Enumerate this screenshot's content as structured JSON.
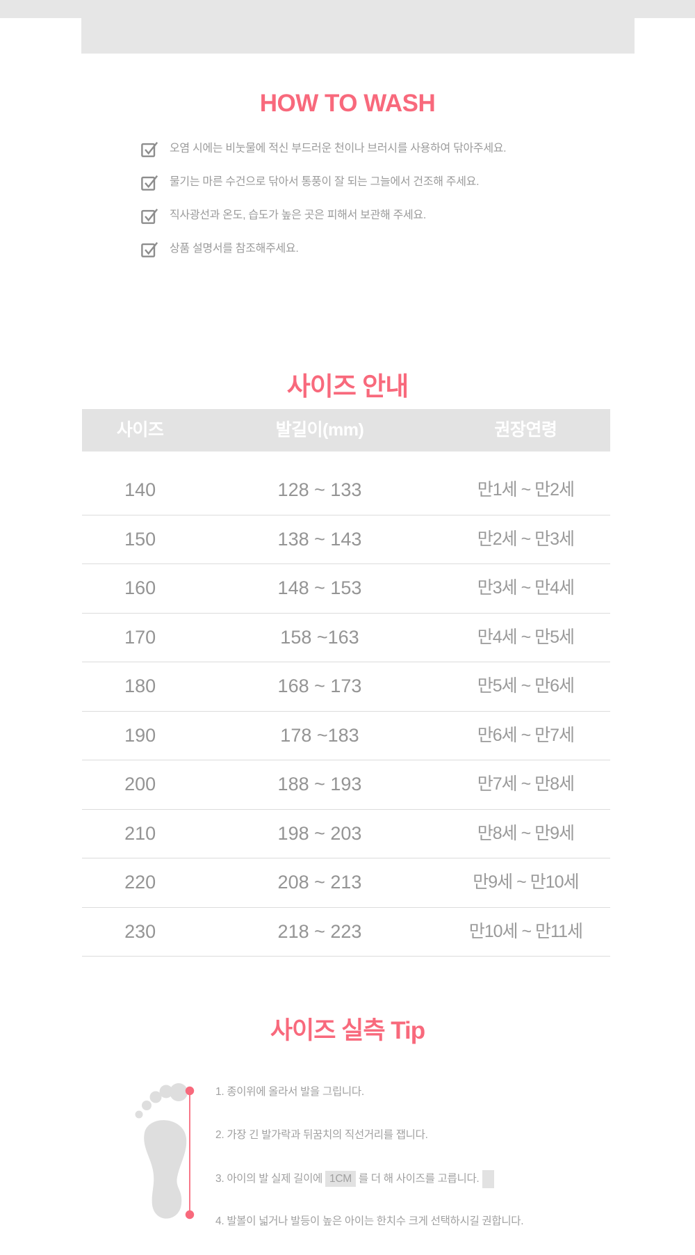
{
  "colors": {
    "accent": "#F8697C",
    "gray_block": "#e6e6e6",
    "table_header_bg": "#e3e3e3",
    "table_header_text": "#ffffff",
    "body_text_gray": "#9b9b9b"
  },
  "wash": {
    "title": "HOW TO WASH",
    "items": [
      "오염 시에는 비눗물에 적신 부드러운 천이나 브러시를 사용하여 닦아주세요.",
      "물기는 마른 수건으로 닦아서 통풍이 잘 되는 그늘에서 건조해 주세요.",
      "직사광선과 온도, 습도가 높은 곳은 피해서 보관해 주세요.",
      "상품 설명서를 참조해주세요."
    ]
  },
  "size_guide": {
    "title": "사이즈 안내",
    "headers": [
      "사이즈",
      "발길이(mm)",
      "권장연령"
    ],
    "rows": [
      [
        "140",
        "128 ~ 133",
        "만1세 ~ 만2세"
      ],
      [
        "150",
        "138 ~ 143",
        "만2세 ~ 만3세"
      ],
      [
        "160",
        "148 ~ 153",
        "만3세 ~ 만4세"
      ],
      [
        "170",
        "158 ~163",
        "만4세 ~ 만5세"
      ],
      [
        "180",
        "168 ~ 173",
        "만5세 ~ 만6세"
      ],
      [
        "190",
        "178 ~183",
        "만6세 ~ 만7세"
      ],
      [
        "200",
        "188 ~ 193",
        "만7세 ~ 만8세"
      ],
      [
        "210",
        "198 ~ 203",
        "만8세 ~ 만9세"
      ],
      [
        "220",
        "208 ~ 213",
        "만9세 ~ 만10세"
      ],
      [
        "230",
        "218 ~ 223",
        "만10세 ~ 만11세"
      ]
    ]
  },
  "tip": {
    "title": "사이즈 실측 Tip",
    "line1": "1. 종이위에 올라서 발을 그립니다.",
    "line2": "2. 가장 긴 발가락과 뒤꿈치의 직선거리를 잽니다.",
    "line3": {
      "prefix": "3. 아이의 발 실제 길이에 ",
      "highlight": "1CM",
      "suffix": " 를 더 해 사이즈를 고릅니다."
    },
    "line4": "4. 발볼이 넓거나 발등이 높은 아이는 한치수 크게 선택하시길 권합니다."
  }
}
